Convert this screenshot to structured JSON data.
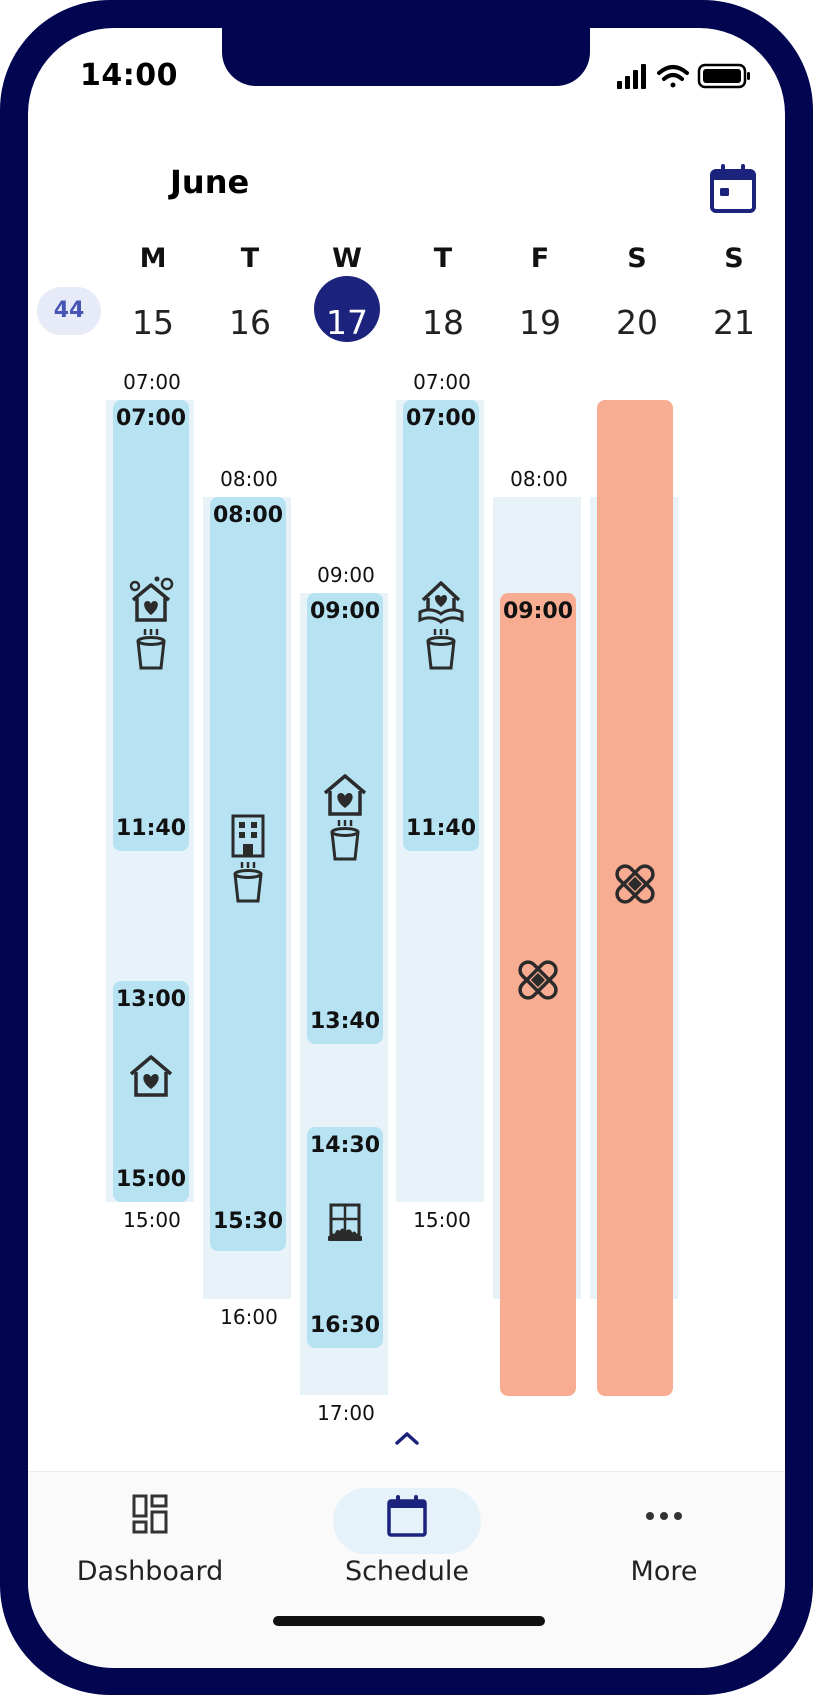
{
  "status_bar": {
    "time": "14:00"
  },
  "header": {
    "month": "June",
    "calendar_icon": "calendar-icon"
  },
  "week": {
    "number": "44",
    "days": [
      {
        "letter": "M",
        "date": "15"
      },
      {
        "letter": "T",
        "date": "16"
      },
      {
        "letter": "W",
        "date": "17",
        "today": true
      },
      {
        "letter": "T",
        "date": "18"
      },
      {
        "letter": "F",
        "date": "19"
      },
      {
        "letter": "S",
        "date": "20"
      },
      {
        "letter": "S",
        "date": "21"
      }
    ]
  },
  "schedule": {
    "mon": {
      "start_label": "07:00",
      "end_label": "15:00",
      "blocks": [
        {
          "start": "07:00",
          "end": "11:40",
          "icons": [
            "house-cleaning-icon",
            "cup-icon"
          ]
        },
        {
          "start": "13:00",
          "end": "15:00",
          "icons": [
            "heart-house-icon"
          ]
        }
      ]
    },
    "tue": {
      "start_label": "08:00",
      "end_label": "16:00",
      "blocks": [
        {
          "start": "08:00",
          "end": "15:30",
          "icons": [
            "building-icon",
            "cup-icon"
          ]
        }
      ]
    },
    "wed": {
      "start_label": "09:00",
      "end_label": "17:00",
      "blocks": [
        {
          "start": "09:00",
          "end": "13:40",
          "icons": [
            "heart-house-icon",
            "cup-icon"
          ]
        },
        {
          "start": "14:30",
          "end": "16:30",
          "icons": [
            "window-icon"
          ]
        }
      ]
    },
    "thu": {
      "start_label": "07:00",
      "end_label": "15:00",
      "blocks": [
        {
          "start": "07:00",
          "end": "11:40",
          "icons": [
            "open-house-icon",
            "cup-icon"
          ]
        }
      ]
    },
    "fri": {
      "start_label": "08:00",
      "blocks": [
        {
          "start": "09:00",
          "type": "sick",
          "icons": [
            "bandage-icon"
          ]
        }
      ]
    },
    "sat": {
      "blocks": [
        {
          "type": "sick",
          "icons": [
            "bandage-icon"
          ]
        }
      ]
    }
  },
  "colors": {
    "work": "#b6e2f2",
    "sick": "#f8ad92",
    "shift_bg": "#e7f3f9",
    "accent": "#1b237c"
  },
  "tabbar": {
    "items": [
      {
        "label": "Dashboard",
        "icon": "dashboard-icon"
      },
      {
        "label": "Schedule",
        "icon": "calendar-icon",
        "active": true
      },
      {
        "label": "More",
        "icon": "more-icon"
      }
    ]
  }
}
